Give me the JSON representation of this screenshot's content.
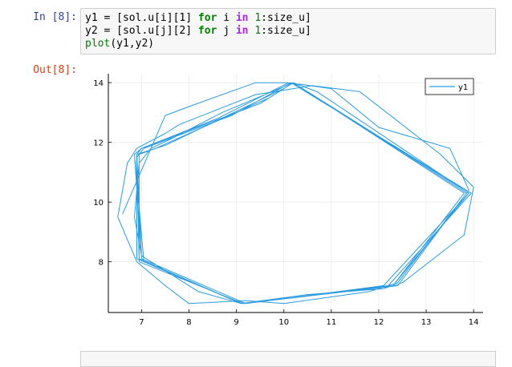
{
  "cell_in": {
    "prompt": "In [8]:",
    "lines": [
      {
        "var": "y1",
        "eq": " = ",
        "src": "[sol.u[i][1] ",
        "for": "for",
        "mid": " i ",
        "in": "in",
        "rng1": " ",
        "one": "1",
        "tail": ":size_u]"
      },
      {
        "var": "y2",
        "eq": " = ",
        "src": "[sol.u[j][2] ",
        "for": "for",
        "mid": " j ",
        "in": "in",
        "rng1": " ",
        "one": "1",
        "tail": ":size_u]"
      }
    ],
    "line3_fn": "plot",
    "line3_args": "(y1,y2)"
  },
  "cell_out": {
    "prompt": "Out[8]:"
  },
  "chart_data": {
    "type": "line",
    "title": "",
    "xlabel": "",
    "ylabel": "",
    "xlim": [
      6.3,
      14.2
    ],
    "ylim": [
      6.3,
      14.3
    ],
    "xticks": [
      7,
      8,
      9,
      10,
      11,
      12,
      13,
      14
    ],
    "yticks": [
      8,
      10,
      12,
      14
    ],
    "grid": true,
    "legend": {
      "position": "top-right",
      "entries": [
        "y1"
      ]
    },
    "color": "#2b9be0",
    "series": [
      {
        "name": "y1",
        "x": [
          6.6,
          7.5,
          8.0,
          9.4,
          10.1,
          11.0,
          12.0,
          13.5,
          13.9,
          12.4,
          11.8,
          10.0,
          9.2,
          8.0,
          7.5,
          6.9,
          6.5,
          6.7,
          6.9,
          7.5,
          7.8,
          9.4,
          10.2,
          10.6,
          11.6,
          13.3,
          14.0,
          13.8,
          12.5,
          12.1,
          10.5,
          9.1,
          8.2,
          7.0,
          6.85,
          6.95,
          7.2,
          7.6,
          8.7,
          10.2,
          10.7,
          13.9,
          12.3,
          9.1,
          6.9,
          6.9,
          7.0,
          8.6,
          10.1,
          10.3,
          13.85,
          12.4,
          9.15,
          6.95,
          6.9,
          7.05,
          8.9,
          10.15,
          13.95,
          12.2,
          9.2,
          7.0,
          6.85,
          7.0,
          9.5,
          10.2,
          13.9,
          12.3,
          9.1,
          6.95,
          6.95,
          7.3,
          9.7,
          10.2,
          13.9,
          12.1,
          9.2,
          7.0,
          6.9,
          7.5,
          10.0,
          10.2,
          13.8,
          12.3,
          9.1,
          7.05,
          6.85,
          7.0
        ],
        "y": [
          9.6,
          12.9,
          13.2,
          14.0,
          14.0,
          13.8,
          12.5,
          11.8,
          10.4,
          7.3,
          7.0,
          6.6,
          6.7,
          6.6,
          7.2,
          8.0,
          9.5,
          11.3,
          11.8,
          12.3,
          12.6,
          13.6,
          13.8,
          13.9,
          13.7,
          11.6,
          10.5,
          8.9,
          7.3,
          7.1,
          6.9,
          6.6,
          7.0,
          8.2,
          9.5,
          11.3,
          11.8,
          12.1,
          13.0,
          14.0,
          13.7,
          10.3,
          7.2,
          6.6,
          8.1,
          11.6,
          11.8,
          12.8,
          14.0,
          13.9,
          10.3,
          7.2,
          6.6,
          8.0,
          11.5,
          11.8,
          12.9,
          14.0,
          10.3,
          7.2,
          6.6,
          8.1,
          11.6,
          11.8,
          13.3,
          14.0,
          10.3,
          7.2,
          6.6,
          8.1,
          11.6,
          11.8,
          13.5,
          14.0,
          10.3,
          7.2,
          6.6,
          8.1,
          11.6,
          11.9,
          13.8,
          14.0,
          10.3,
          7.2,
          6.6,
          8.0,
          11.6,
          11.8
        ]
      }
    ]
  }
}
